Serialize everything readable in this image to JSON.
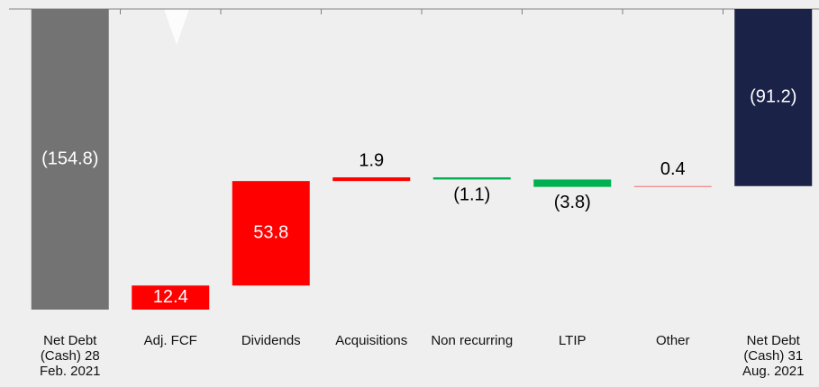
{
  "chart_data": {
    "type": "waterfall",
    "categories": [
      "Net Debt (Cash) 28 Feb. 2021",
      "Adj. FCF",
      "Dividends",
      "Acquisitions",
      "Non recurring",
      "LTIP",
      "Other",
      "Net Debt (Cash) 31 Aug. 2021"
    ],
    "values": [
      -154.8,
      12.4,
      53.8,
      1.9,
      -1.1,
      -3.8,
      0.4,
      -91.2
    ],
    "value_labels": [
      "(154.8)",
      "12.4",
      "53.8",
      "1.9",
      "(1.1)",
      "(3.8)",
      "0.4",
      "(91.2)"
    ],
    "colors": [
      "#737373",
      "#ff0000",
      "#ff0000",
      "#ff0000",
      "#00b050",
      "#00b050",
      "#f07070",
      "#1a2248"
    ],
    "ylim": [
      -160,
      0
    ]
  }
}
